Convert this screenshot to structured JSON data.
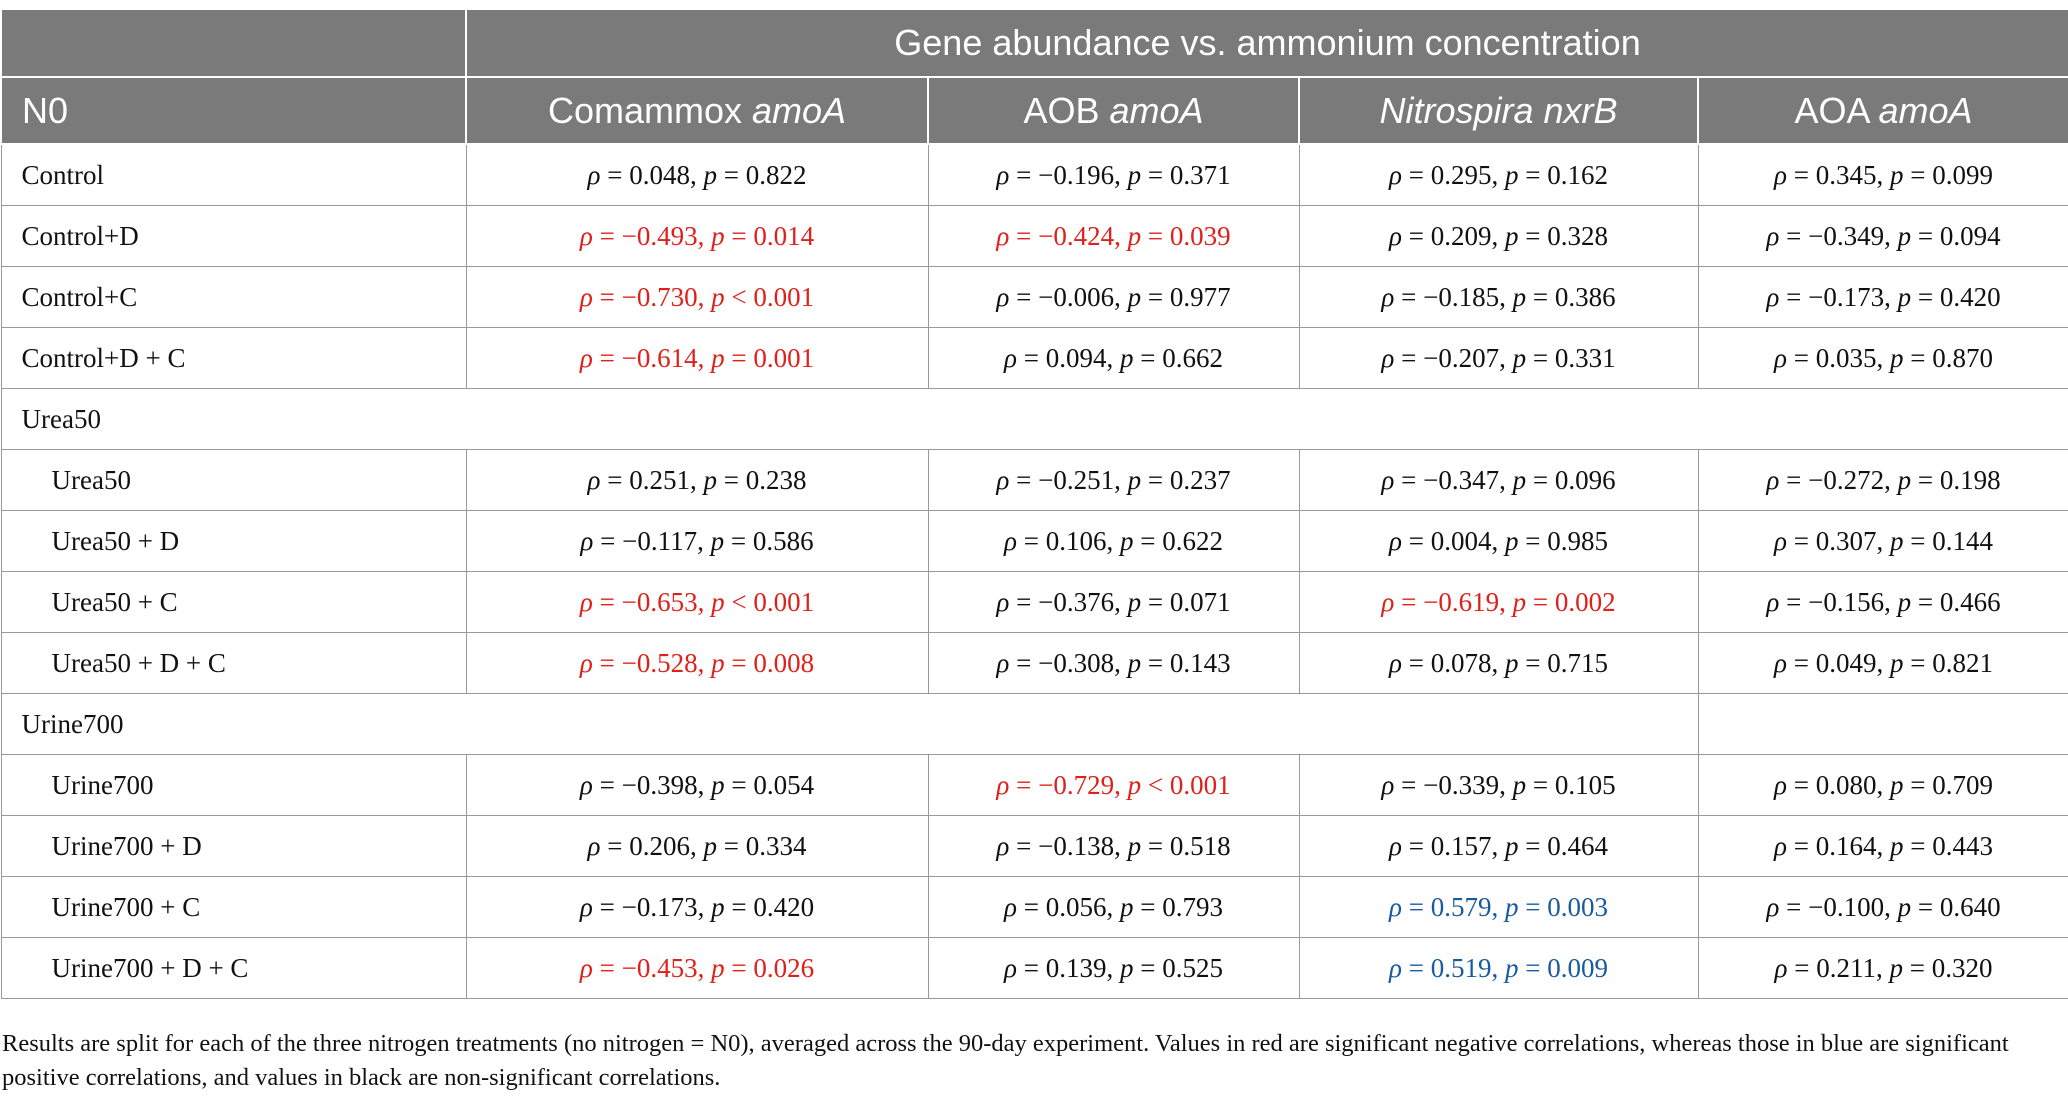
{
  "header": {
    "group_title": "Gene abundance vs. ammonium concentration",
    "corner_label": "N0",
    "columns": [
      {
        "prefix": "Comammox ",
        "italic": "amoA",
        "suffix": ""
      },
      {
        "prefix": "AOB ",
        "italic": "amoA",
        "suffix": ""
      },
      {
        "prefix": "",
        "italic": "Nitrospira nxrB",
        "suffix": ""
      },
      {
        "prefix": "AOA ",
        "italic": "amoA",
        "suffix": ""
      }
    ]
  },
  "rows": [
    {
      "type": "data",
      "label": "Control",
      "indent": false,
      "cells": [
        {
          "rho": "0.048",
          "p": "0.822",
          "op": "=",
          "color": "black"
        },
        {
          "rho": "−0.196",
          "p": "0.371",
          "op": "=",
          "color": "black"
        },
        {
          "rho": "0.295",
          "p": "0.162",
          "op": "=",
          "color": "black"
        },
        {
          "rho": "0.345",
          "p": "0.099",
          "op": "=",
          "color": "black"
        }
      ]
    },
    {
      "type": "data",
      "label": "Control+D",
      "indent": false,
      "cells": [
        {
          "rho": "−0.493",
          "p": "0.014",
          "op": "=",
          "color": "red"
        },
        {
          "rho": "−0.424",
          "p": "0.039",
          "op": "=",
          "color": "red"
        },
        {
          "rho": "0.209",
          "p": "0.328",
          "op": "=",
          "color": "black"
        },
        {
          "rho": "−0.349",
          "p": "0.094",
          "op": "=",
          "color": "black"
        }
      ]
    },
    {
      "type": "data",
      "label": "Control+C",
      "indent": false,
      "cells": [
        {
          "rho": "−0.730",
          "p": "0.001",
          "op": "<",
          "color": "red"
        },
        {
          "rho": "−0.006",
          "p": "0.977",
          "op": "=",
          "color": "black"
        },
        {
          "rho": "−0.185",
          "p": "0.386",
          "op": "=",
          "color": "black"
        },
        {
          "rho": "−0.173",
          "p": "0.420",
          "op": "=",
          "color": "black"
        }
      ]
    },
    {
      "type": "data",
      "label": "Control+D + C",
      "indent": false,
      "cells": [
        {
          "rho": "−0.614",
          "p": "0.001",
          "op": "=",
          "color": "red"
        },
        {
          "rho": "0.094",
          "p": "0.662",
          "op": "=",
          "color": "black"
        },
        {
          "rho": "−0.207",
          "p": "0.331",
          "op": "=",
          "color": "black"
        },
        {
          "rho": "0.035",
          "p": "0.870",
          "op": "=",
          "color": "black"
        }
      ]
    },
    {
      "type": "group",
      "label": "Urea50",
      "span": 5
    },
    {
      "type": "data",
      "label": "Urea50",
      "indent": true,
      "cells": [
        {
          "rho": "0.251",
          "p": "0.238",
          "op": "=",
          "color": "black"
        },
        {
          "rho": "−0.251",
          "p": "0.237",
          "op": "=",
          "color": "black"
        },
        {
          "rho": "−0.347",
          "p": "0.096",
          "op": "=",
          "color": "black"
        },
        {
          "rho": "−0.272",
          "p": "0.198",
          "op": "=",
          "color": "black"
        }
      ]
    },
    {
      "type": "data",
      "label": "Urea50 + D",
      "indent": true,
      "cells": [
        {
          "rho": "−0.117",
          "p": "0.586",
          "op": "=",
          "color": "black"
        },
        {
          "rho": "0.106",
          "p": "0.622",
          "op": "=",
          "color": "black"
        },
        {
          "rho": "0.004",
          "p": "0.985",
          "op": "=",
          "color": "black"
        },
        {
          "rho": "0.307",
          "p": "0.144",
          "op": "=",
          "color": "black"
        }
      ]
    },
    {
      "type": "data",
      "label": "Urea50 + C",
      "indent": true,
      "cells": [
        {
          "rho": "−0.653",
          "p": "0.001",
          "op": "<",
          "color": "red"
        },
        {
          "rho": "−0.376",
          "p": "0.071",
          "op": "=",
          "color": "black"
        },
        {
          "rho": "−0.619",
          "p": "0.002",
          "op": "=",
          "color": "red"
        },
        {
          "rho": "−0.156",
          "p": "0.466",
          "op": "=",
          "color": "black"
        }
      ]
    },
    {
      "type": "data",
      "label": "Urea50 + D + C",
      "indent": true,
      "cells": [
        {
          "rho": "−0.528",
          "p": "0.008",
          "op": "=",
          "color": "red"
        },
        {
          "rho": "−0.308",
          "p": "0.143",
          "op": "=",
          "color": "black"
        },
        {
          "rho": "0.078",
          "p": "0.715",
          "op": "=",
          "color": "black"
        },
        {
          "rho": "0.049",
          "p": "0.821",
          "op": "=",
          "color": "black"
        }
      ]
    },
    {
      "type": "group",
      "label": "Urine700",
      "span": 4
    },
    {
      "type": "data",
      "label": "Urine700",
      "indent": true,
      "cells": [
        {
          "rho": "−0.398",
          "p": "0.054",
          "op": "=",
          "color": "black"
        },
        {
          "rho": "−0.729",
          "p": "0.001",
          "op": "<",
          "color": "red"
        },
        {
          "rho": "−0.339",
          "p": "0.105",
          "op": "=",
          "color": "black"
        },
        {
          "rho": "0.080",
          "p": "0.709",
          "op": "=",
          "color": "black"
        }
      ]
    },
    {
      "type": "data",
      "label": "Urine700 + D",
      "indent": true,
      "cells": [
        {
          "rho": "0.206",
          "p": "0.334",
          "op": "=",
          "color": "black"
        },
        {
          "rho": "−0.138",
          "p": "0.518",
          "op": "=",
          "color": "black"
        },
        {
          "rho": "0.157",
          "p": "0.464",
          "op": "=",
          "color": "black"
        },
        {
          "rho": "0.164",
          "p": "0.443",
          "op": "=",
          "color": "black"
        }
      ]
    },
    {
      "type": "data",
      "label": "Urine700 + C",
      "indent": true,
      "cells": [
        {
          "rho": "−0.173",
          "p": "0.420",
          "op": "=",
          "color": "black"
        },
        {
          "rho": "0.056",
          "p": "0.793",
          "op": "=",
          "color": "black"
        },
        {
          "rho": "0.579",
          "p": "0.003",
          "op": "=",
          "color": "blue"
        },
        {
          "rho": "−0.100",
          "p": "0.640",
          "op": "=",
          "color": "black"
        }
      ]
    },
    {
      "type": "data",
      "label": "Urine700 + D + C",
      "indent": true,
      "cells": [
        {
          "rho": "−0.453",
          "p": "0.026",
          "op": "=",
          "color": "red"
        },
        {
          "rho": "0.139",
          "p": "0.525",
          "op": "=",
          "color": "black"
        },
        {
          "rho": "0.519",
          "p": "0.009",
          "op": "=",
          "color": "blue"
        },
        {
          "rho": "0.211",
          "p": "0.320",
          "op": "=",
          "color": "black"
        }
      ]
    }
  ],
  "symbols": {
    "rho": "ρ",
    "p": "p",
    "sep": ", "
  },
  "colors": {
    "header_bg": "#7a7a7a",
    "significant_negative": "#e0201a",
    "significant_positive": "#1a5aa0",
    "non_significant": "#111111"
  },
  "footnote": "Results are split for each of the three nitrogen treatments (no nitrogen = N0), averaged across the 90-day experiment. Values in red are significant negative correlations, whereas those in blue are significant positive correlations, and values in black are non-significant correlations."
}
